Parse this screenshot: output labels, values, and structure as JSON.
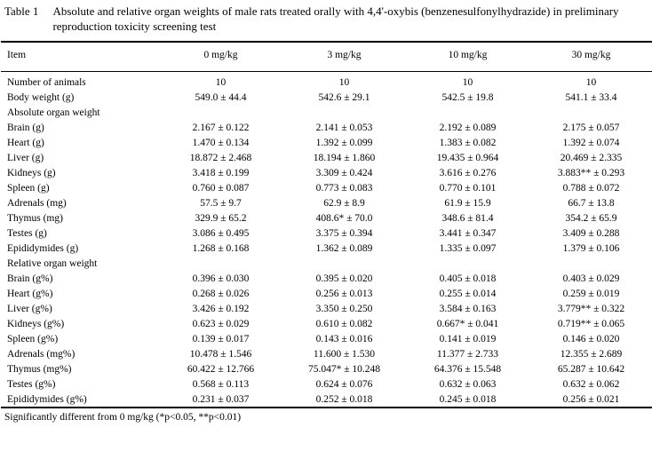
{
  "table": {
    "label": "Table 1",
    "title": "Absolute and relative organ weights of male rats treated orally with 4,4'-oxybis (benzenesulfonylhydrazide) in preliminary reproduction toxicity screening test",
    "columns": [
      "Item",
      "0 mg/kg",
      "3 mg/kg",
      "10 mg/kg",
      "30 mg/kg"
    ],
    "rows": [
      {
        "type": "data",
        "item": "Number of animals",
        "values": [
          "10",
          "10",
          "10",
          "10"
        ]
      },
      {
        "type": "data",
        "item": "Body weight (g)",
        "values": [
          "549.0 ± 44.4",
          "542.6 ± 29.1",
          "542.5 ± 19.8",
          "541.1 ± 33.4"
        ]
      },
      {
        "type": "section",
        "item": "Absolute organ weight"
      },
      {
        "type": "data",
        "item": "Brain (g)",
        "values": [
          "2.167 ± 0.122",
          "2.141 ± 0.053",
          "2.192 ± 0.089",
          "2.175 ± 0.057"
        ]
      },
      {
        "type": "data",
        "item": "Heart (g)",
        "values": [
          "1.470 ± 0.134",
          "1.392 ± 0.099",
          "1.383 ± 0.082",
          "1.392 ± 0.074"
        ]
      },
      {
        "type": "data",
        "item": "Liver (g)",
        "values": [
          "18.872 ± 2.468",
          "18.194 ± 1.860",
          "19.435 ± 0.964",
          "20.469 ± 2.335"
        ]
      },
      {
        "type": "data",
        "item": "Kidneys (g)",
        "values": [
          "3.418 ± 0.199",
          "3.309 ± 0.424",
          "3.616 ± 0.276",
          "3.883** ± 0.293"
        ]
      },
      {
        "type": "data",
        "item": "Spleen (g)",
        "values": [
          "0.760 ± 0.087",
          "0.773 ± 0.083",
          "0.770 ± 0.101",
          "0.788 ± 0.072"
        ]
      },
      {
        "type": "data",
        "item": "Adrenals (mg)",
        "values": [
          "57.5 ± 9.7",
          "62.9 ± 8.9",
          "61.9 ± 15.9",
          "66.7 ± 13.8"
        ]
      },
      {
        "type": "data",
        "item": "Thymus (mg)",
        "values": [
          "329.9 ± 65.2",
          "408.6* ± 70.0",
          "348.6 ± 81.4",
          "354.2 ± 65.9"
        ]
      },
      {
        "type": "data",
        "item": "Testes (g)",
        "values": [
          "3.086 ± 0.495",
          "3.375 ± 0.394",
          "3.441 ± 0.347",
          "3.409 ± 0.288"
        ]
      },
      {
        "type": "data",
        "item": "Epididymides (g)",
        "values": [
          "1.268 ± 0.168",
          "1.362 ± 0.089",
          "1.335 ± 0.097",
          "1.379 ± 0.106"
        ]
      },
      {
        "type": "section",
        "item": "Relative organ weight"
      },
      {
        "type": "data",
        "item": "Brain (g%)",
        "values": [
          "0.396 ± 0.030",
          "0.395 ± 0.020",
          "0.405 ± 0.018",
          "0.403 ± 0.029"
        ]
      },
      {
        "type": "data",
        "item": "Heart (g%)",
        "values": [
          "0.268 ± 0.026",
          "0.256 ± 0.013",
          "0.255 ± 0.014",
          "0.259 ± 0.019"
        ]
      },
      {
        "type": "data",
        "item": "Liver (g%)",
        "values": [
          "3.426 ± 0.192",
          "3.350 ± 0.250",
          "3.584 ± 0.163",
          "3.779** ± 0.322"
        ]
      },
      {
        "type": "data",
        "item": "Kidneys (g%)",
        "values": [
          "0.623 ± 0.029",
          "0.610 ± 0.082",
          "0.667* ± 0.041",
          "0.719** ± 0.065"
        ]
      },
      {
        "type": "data",
        "item": "Spleen (g%)",
        "values": [
          "0.139 ± 0.017",
          "0.143 ± 0.016",
          "0.141 ± 0.019",
          "0.146 ± 0.020"
        ]
      },
      {
        "type": "data",
        "item": "Adrenals (mg%)",
        "values": [
          "10.478 ± 1.546",
          "11.600 ± 1.530",
          "11.377 ± 2.733",
          "12.355 ± 2.689"
        ]
      },
      {
        "type": "data",
        "item": "Thymus (mg%)",
        "values": [
          "60.422 ± 12.766",
          "75.047* ± 10.248",
          "64.376 ± 15.548",
          "65.287 ± 10.642"
        ]
      },
      {
        "type": "data",
        "item": "Testes (g%)",
        "values": [
          "0.568 ± 0.113",
          "0.624 ± 0.076",
          "0.632 ± 0.063",
          "0.632 ± 0.062"
        ]
      },
      {
        "type": "data",
        "item": "Epididymides (g%)",
        "values": [
          "0.231 ± 0.037",
          "0.252 ± 0.018",
          "0.245 ± 0.018",
          "0.256 ± 0.021"
        ]
      }
    ],
    "footnote": "Significantly different from 0 mg/kg (*p<0.05, **p<0.01)"
  }
}
